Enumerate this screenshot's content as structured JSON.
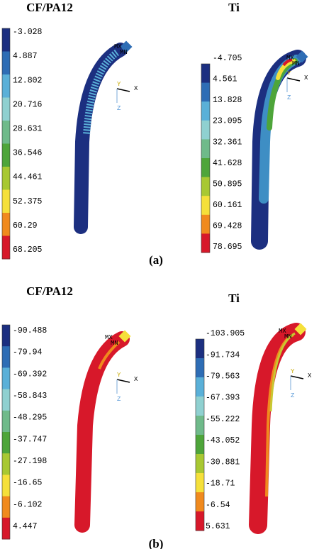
{
  "panels": [
    {
      "label": "(a)",
      "plots": [
        {
          "title": "CF/PA12",
          "legend": [
            "-3.028",
            "4.887",
            "12.802",
            "20.716",
            "28.631",
            "36.546",
            "44.461",
            "52.375",
            "60.29",
            "68.205"
          ]
        },
        {
          "title": "Ti",
          "legend": [
            "-4.705",
            "4.561",
            "13.828",
            "23.095",
            "32.361",
            "41.628",
            "50.895",
            "60.161",
            "69.428",
            "78.695"
          ]
        }
      ]
    },
    {
      "label": "(b)",
      "plots": [
        {
          "title": "CF/PA12",
          "legend": [
            "-90.488",
            "-79.94",
            "-69.392",
            "-58.843",
            "-48.295",
            "-37.747",
            "-27.198",
            "-16.65",
            "-6.102",
            "4.447"
          ]
        },
        {
          "title": "Ti",
          "legend": [
            "-103.905",
            "-91.734",
            "-79.563",
            "-67.393",
            "-55.222",
            "-43.052",
            "-30.881",
            "-18.71",
            "-6.54",
            "5.631"
          ]
        }
      ]
    }
  ],
  "triad": {
    "x": "X",
    "y": "Y",
    "z": "Z"
  },
  "markers": {
    "max": "MX",
    "min": "MN"
  }
}
